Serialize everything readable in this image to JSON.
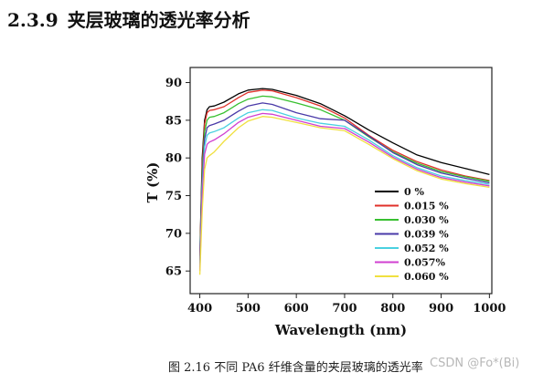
{
  "heading": {
    "number": "2.3.9",
    "text": "夹层玻璃的透光率分析"
  },
  "caption": "图 2.16  不同 PA6 纤维含量的夹层玻璃的透光率",
  "watermark": "CSDN @Fo*(Bi)",
  "chart_data": {
    "type": "line",
    "title": "",
    "xlabel": "Wavelength (nm)",
    "ylabel": "T (%)",
    "xlim": [
      380,
      1005
    ],
    "ylim": [
      62,
      92
    ],
    "xticks": [
      400,
      500,
      600,
      700,
      800,
      900,
      1000
    ],
    "yticks": [
      65,
      70,
      75,
      80,
      85,
      90
    ],
    "legend_position": "right",
    "grid": false,
    "series": [
      {
        "name": "0 %",
        "color": "#000000",
        "x": [
          400,
          405,
          410,
          415,
          420,
          430,
          450,
          480,
          500,
          530,
          550,
          600,
          650,
          700,
          750,
          800,
          850,
          900,
          950,
          1000
        ],
        "y": [
          67,
          80,
          85,
          86.4,
          86.8,
          86.9,
          87.4,
          88.5,
          89.0,
          89.2,
          89.1,
          88.3,
          87.2,
          85.6,
          83.7,
          82.0,
          80.4,
          79.4,
          78.6,
          77.8
        ]
      },
      {
        "name": "0.015 %",
        "color": "#e0302a",
        "x": [
          400,
          405,
          410,
          415,
          420,
          430,
          450,
          480,
          500,
          530,
          550,
          600,
          650,
          700,
          750,
          800,
          850,
          900,
          950,
          1000
        ],
        "y": [
          66.5,
          79,
          84.5,
          86,
          86.3,
          86.4,
          86.8,
          88.0,
          88.7,
          89.0,
          88.9,
          88.0,
          86.9,
          85.3,
          83.0,
          81.0,
          79.5,
          78.4,
          77.6,
          77.0
        ]
      },
      {
        "name": "0.030 %",
        "color": "#38c030",
        "x": [
          400,
          405,
          410,
          415,
          420,
          430,
          450,
          480,
          500,
          530,
          550,
          600,
          650,
          700,
          750,
          800,
          850,
          900,
          950,
          1000
        ],
        "y": [
          66,
          78,
          83.5,
          85,
          85.4,
          85.5,
          86.0,
          87.2,
          87.8,
          88.2,
          88.1,
          87.3,
          86.4,
          85.0,
          82.8,
          80.8,
          79.3,
          78.2,
          77.5,
          76.9
        ]
      },
      {
        "name": "0.039 %",
        "color": "#4a3aa8",
        "x": [
          400,
          405,
          410,
          415,
          420,
          430,
          450,
          480,
          500,
          530,
          550,
          600,
          650,
          700,
          750,
          800,
          850,
          900,
          950,
          1000
        ],
        "y": [
          65.5,
          77,
          82.5,
          84,
          84.3,
          84.5,
          85.0,
          86.2,
          86.9,
          87.3,
          87.1,
          86.0,
          85.2,
          85.0,
          82.9,
          80.7,
          79.1,
          78.0,
          77.3,
          76.7
        ]
      },
      {
        "name": "0.052 %",
        "color": "#4ad0e0",
        "x": [
          400,
          405,
          410,
          415,
          420,
          430,
          450,
          480,
          500,
          530,
          550,
          600,
          650,
          700,
          750,
          800,
          850,
          900,
          950,
          1000
        ],
        "y": [
          65.3,
          76,
          81.5,
          83,
          83.3,
          83.5,
          84.0,
          85.3,
          86.0,
          86.4,
          86.3,
          85.3,
          84.6,
          84.2,
          82.4,
          80.3,
          78.7,
          77.6,
          77.0,
          76.5
        ]
      },
      {
        "name": "0.057%",
        "color": "#d040d0",
        "x": [
          400,
          405,
          410,
          415,
          420,
          430,
          450,
          480,
          500,
          530,
          550,
          600,
          650,
          700,
          750,
          800,
          850,
          900,
          950,
          1000
        ],
        "y": [
          65,
          75,
          80.5,
          81.8,
          82.1,
          82.4,
          83.2,
          84.7,
          85.4,
          85.9,
          85.8,
          85.0,
          84.2,
          83.9,
          82.1,
          80.1,
          78.5,
          77.4,
          76.8,
          76.3
        ]
      },
      {
        "name": "0.060 %",
        "color": "#f0e040",
        "x": [
          400,
          405,
          410,
          415,
          420,
          430,
          450,
          480,
          500,
          530,
          550,
          600,
          650,
          700,
          750,
          800,
          850,
          900,
          950,
          1000
        ],
        "y": [
          64.5,
          73,
          78.5,
          80,
          80.3,
          80.8,
          82.2,
          84.0,
          84.9,
          85.5,
          85.4,
          84.7,
          84.0,
          83.6,
          81.8,
          79.9,
          78.3,
          77.2,
          76.6,
          76.1
        ]
      }
    ]
  }
}
